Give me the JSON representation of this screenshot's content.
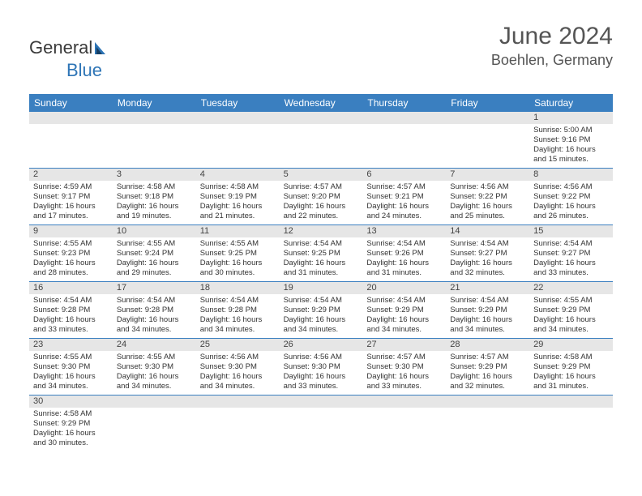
{
  "brand": {
    "text1": "General",
    "text2": "Blue",
    "sail_color": "#2e75b6"
  },
  "header": {
    "month_title": "June 2024",
    "location": "Boehlen, Germany"
  },
  "colors": {
    "header_bar": "#3a7fc0",
    "day_number_bg": "#e6e6e6",
    "text": "#333333"
  },
  "days_of_week": [
    "Sunday",
    "Monday",
    "Tuesday",
    "Wednesday",
    "Thursday",
    "Friday",
    "Saturday"
  ],
  "weeks": [
    {
      "numbers": [
        "",
        "",
        "",
        "",
        "",
        "",
        "1"
      ],
      "cells": [
        null,
        null,
        null,
        null,
        null,
        null,
        {
          "sunrise": "Sunrise: 5:00 AM",
          "sunset": "Sunset: 9:16 PM",
          "day1": "Daylight: 16 hours",
          "day2": "and 15 minutes."
        }
      ]
    },
    {
      "numbers": [
        "2",
        "3",
        "4",
        "5",
        "6",
        "7",
        "8"
      ],
      "cells": [
        {
          "sunrise": "Sunrise: 4:59 AM",
          "sunset": "Sunset: 9:17 PM",
          "day1": "Daylight: 16 hours",
          "day2": "and 17 minutes."
        },
        {
          "sunrise": "Sunrise: 4:58 AM",
          "sunset": "Sunset: 9:18 PM",
          "day1": "Daylight: 16 hours",
          "day2": "and 19 minutes."
        },
        {
          "sunrise": "Sunrise: 4:58 AM",
          "sunset": "Sunset: 9:19 PM",
          "day1": "Daylight: 16 hours",
          "day2": "and 21 minutes."
        },
        {
          "sunrise": "Sunrise: 4:57 AM",
          "sunset": "Sunset: 9:20 PM",
          "day1": "Daylight: 16 hours",
          "day2": "and 22 minutes."
        },
        {
          "sunrise": "Sunrise: 4:57 AM",
          "sunset": "Sunset: 9:21 PM",
          "day1": "Daylight: 16 hours",
          "day2": "and 24 minutes."
        },
        {
          "sunrise": "Sunrise: 4:56 AM",
          "sunset": "Sunset: 9:22 PM",
          "day1": "Daylight: 16 hours",
          "day2": "and 25 minutes."
        },
        {
          "sunrise": "Sunrise: 4:56 AM",
          "sunset": "Sunset: 9:22 PM",
          "day1": "Daylight: 16 hours",
          "day2": "and 26 minutes."
        }
      ]
    },
    {
      "numbers": [
        "9",
        "10",
        "11",
        "12",
        "13",
        "14",
        "15"
      ],
      "cells": [
        {
          "sunrise": "Sunrise: 4:55 AM",
          "sunset": "Sunset: 9:23 PM",
          "day1": "Daylight: 16 hours",
          "day2": "and 28 minutes."
        },
        {
          "sunrise": "Sunrise: 4:55 AM",
          "sunset": "Sunset: 9:24 PM",
          "day1": "Daylight: 16 hours",
          "day2": "and 29 minutes."
        },
        {
          "sunrise": "Sunrise: 4:55 AM",
          "sunset": "Sunset: 9:25 PM",
          "day1": "Daylight: 16 hours",
          "day2": "and 30 minutes."
        },
        {
          "sunrise": "Sunrise: 4:54 AM",
          "sunset": "Sunset: 9:25 PM",
          "day1": "Daylight: 16 hours",
          "day2": "and 31 minutes."
        },
        {
          "sunrise": "Sunrise: 4:54 AM",
          "sunset": "Sunset: 9:26 PM",
          "day1": "Daylight: 16 hours",
          "day2": "and 31 minutes."
        },
        {
          "sunrise": "Sunrise: 4:54 AM",
          "sunset": "Sunset: 9:27 PM",
          "day1": "Daylight: 16 hours",
          "day2": "and 32 minutes."
        },
        {
          "sunrise": "Sunrise: 4:54 AM",
          "sunset": "Sunset: 9:27 PM",
          "day1": "Daylight: 16 hours",
          "day2": "and 33 minutes."
        }
      ]
    },
    {
      "numbers": [
        "16",
        "17",
        "18",
        "19",
        "20",
        "21",
        "22"
      ],
      "cells": [
        {
          "sunrise": "Sunrise: 4:54 AM",
          "sunset": "Sunset: 9:28 PM",
          "day1": "Daylight: 16 hours",
          "day2": "and 33 minutes."
        },
        {
          "sunrise": "Sunrise: 4:54 AM",
          "sunset": "Sunset: 9:28 PM",
          "day1": "Daylight: 16 hours",
          "day2": "and 34 minutes."
        },
        {
          "sunrise": "Sunrise: 4:54 AM",
          "sunset": "Sunset: 9:28 PM",
          "day1": "Daylight: 16 hours",
          "day2": "and 34 minutes."
        },
        {
          "sunrise": "Sunrise: 4:54 AM",
          "sunset": "Sunset: 9:29 PM",
          "day1": "Daylight: 16 hours",
          "day2": "and 34 minutes."
        },
        {
          "sunrise": "Sunrise: 4:54 AM",
          "sunset": "Sunset: 9:29 PM",
          "day1": "Daylight: 16 hours",
          "day2": "and 34 minutes."
        },
        {
          "sunrise": "Sunrise: 4:54 AM",
          "sunset": "Sunset: 9:29 PM",
          "day1": "Daylight: 16 hours",
          "day2": "and 34 minutes."
        },
        {
          "sunrise": "Sunrise: 4:55 AM",
          "sunset": "Sunset: 9:29 PM",
          "day1": "Daylight: 16 hours",
          "day2": "and 34 minutes."
        }
      ]
    },
    {
      "numbers": [
        "23",
        "24",
        "25",
        "26",
        "27",
        "28",
        "29"
      ],
      "cells": [
        {
          "sunrise": "Sunrise: 4:55 AM",
          "sunset": "Sunset: 9:30 PM",
          "day1": "Daylight: 16 hours",
          "day2": "and 34 minutes."
        },
        {
          "sunrise": "Sunrise: 4:55 AM",
          "sunset": "Sunset: 9:30 PM",
          "day1": "Daylight: 16 hours",
          "day2": "and 34 minutes."
        },
        {
          "sunrise": "Sunrise: 4:56 AM",
          "sunset": "Sunset: 9:30 PM",
          "day1": "Daylight: 16 hours",
          "day2": "and 34 minutes."
        },
        {
          "sunrise": "Sunrise: 4:56 AM",
          "sunset": "Sunset: 9:30 PM",
          "day1": "Daylight: 16 hours",
          "day2": "and 33 minutes."
        },
        {
          "sunrise": "Sunrise: 4:57 AM",
          "sunset": "Sunset: 9:30 PM",
          "day1": "Daylight: 16 hours",
          "day2": "and 33 minutes."
        },
        {
          "sunrise": "Sunrise: 4:57 AM",
          "sunset": "Sunset: 9:29 PM",
          "day1": "Daylight: 16 hours",
          "day2": "and 32 minutes."
        },
        {
          "sunrise": "Sunrise: 4:58 AM",
          "sunset": "Sunset: 9:29 PM",
          "day1": "Daylight: 16 hours",
          "day2": "and 31 minutes."
        }
      ]
    },
    {
      "numbers": [
        "30",
        "",
        "",
        "",
        "",
        "",
        ""
      ],
      "cells": [
        {
          "sunrise": "Sunrise: 4:58 AM",
          "sunset": "Sunset: 9:29 PM",
          "day1": "Daylight: 16 hours",
          "day2": "and 30 minutes."
        },
        null,
        null,
        null,
        null,
        null,
        null
      ]
    }
  ]
}
